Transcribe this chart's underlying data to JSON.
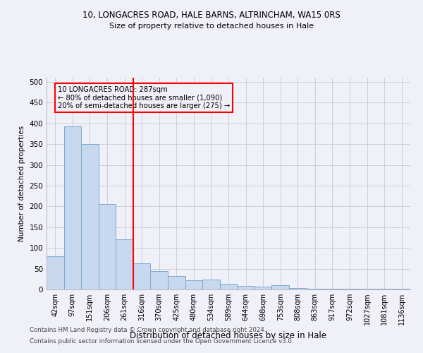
{
  "title1": "10, LONGACRES ROAD, HALE BARNS, ALTRINCHAM, WA15 0RS",
  "title2": "Size of property relative to detached houses in Hale",
  "xlabel": "Distribution of detached houses by size in Hale",
  "ylabel": "Number of detached properties",
  "categories": [
    "42sqm",
    "97sqm",
    "151sqm",
    "206sqm",
    "261sqm",
    "316sqm",
    "370sqm",
    "425sqm",
    "480sqm",
    "534sqm",
    "589sqm",
    "644sqm",
    "698sqm",
    "753sqm",
    "808sqm",
    "863sqm",
    "917sqm",
    "972sqm",
    "1027sqm",
    "1081sqm",
    "1136sqm"
  ],
  "values": [
    80,
    393,
    350,
    205,
    121,
    63,
    44,
    33,
    22,
    23,
    14,
    8,
    7,
    10,
    3,
    1,
    1,
    1,
    1,
    1,
    1
  ],
  "bar_color": "#c8d8ee",
  "bar_edge_color": "#7aaad0",
  "vline_x": 4.5,
  "vline_color": "red",
  "annotation_text": "10 LONGACRES ROAD: 287sqm\n← 80% of detached houses are smaller (1,090)\n20% of semi-detached houses are larger (275) →",
  "annotation_box_color": "red",
  "ylim": [
    0,
    510
  ],
  "yticks": [
    0,
    50,
    100,
    150,
    200,
    250,
    300,
    350,
    400,
    450,
    500
  ],
  "footer1": "Contains HM Land Registry data © Crown copyright and database right 2024.",
  "footer2": "Contains public sector information licensed under the Open Government Licence v3.0.",
  "bg_color": "#f0f0f8"
}
